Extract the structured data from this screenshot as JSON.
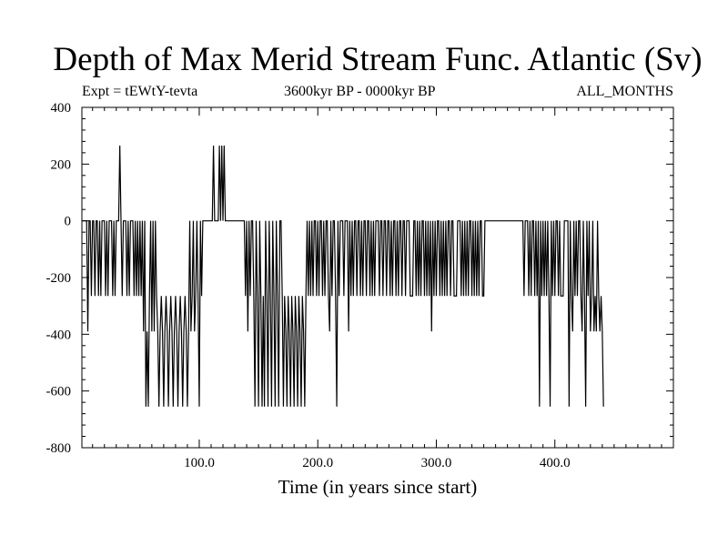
{
  "chart_data": {
    "type": "line",
    "title": "Depth of Max Merid Stream Func. Atlantic (Sv)",
    "annotations": {
      "left": "Expt = tEWtY-tevta",
      "center": "3600kyr BP - 0000kyr BP",
      "right": "ALL_MONTHS"
    },
    "xlabel": "Time (in years since start)",
    "ylabel": "",
    "xlim": [
      1,
      500
    ],
    "ylim": [
      -800,
      400
    ],
    "x_ticks": [
      100,
      200,
      300,
      400
    ],
    "x_tick_labels": [
      "100.0",
      "200.0",
      "300.0",
      "400.0"
    ],
    "y_ticks": [
      400,
      200,
      0,
      -200,
      -400,
      -600,
      -800
    ],
    "y_tick_labels": [
      "400",
      "200",
      "0",
      "-200",
      "-400",
      "-600",
      "-800"
    ],
    "grid": false,
    "series": [
      {
        "x_start": 1,
        "x_step": 1,
        "values": [
          0,
          0,
          0,
          0,
          0,
          -390,
          0,
          0,
          -265,
          0,
          0,
          -265,
          0,
          0,
          -265,
          0,
          -265,
          0,
          0,
          0,
          -265,
          0,
          -265,
          0,
          0,
          0,
          -265,
          0,
          -265,
          0,
          0,
          0,
          265,
          0,
          -265,
          0,
          0,
          0,
          -265,
          0,
          -265,
          0,
          0,
          0,
          -265,
          0,
          -265,
          0,
          -265,
          0,
          -265,
          0,
          -390,
          0,
          -655,
          -390,
          -655,
          -265,
          0,
          -390,
          0,
          -390,
          0,
          -265,
          -390,
          -655,
          -390,
          -265,
          -390,
          -655,
          -390,
          -265,
          -390,
          -655,
          -390,
          -265,
          -390,
          -655,
          -390,
          -265,
          -390,
          -655,
          -390,
          -265,
          -390,
          -655,
          -390,
          -265,
          -390,
          -655,
          -390,
          0,
          -390,
          -265,
          0,
          -390,
          -265,
          0,
          -265,
          -655,
          0,
          -265,
          0,
          0,
          0,
          0,
          0,
          0,
          0,
          0,
          0,
          265,
          0,
          0,
          0,
          0,
          265,
          0,
          265,
          0,
          265,
          0,
          0,
          0,
          0,
          0,
          0,
          0,
          0,
          0,
          0,
          0,
          0,
          0,
          0,
          0,
          0,
          0,
          -265,
          0,
          -390,
          0,
          -265,
          0,
          0,
          -265,
          -655,
          0,
          -265,
          -655,
          0,
          -265,
          -655,
          -265,
          -655,
          0,
          -265,
          -655,
          0,
          -265,
          -655,
          0,
          -265,
          -655,
          0,
          -265,
          -655,
          0,
          0,
          -265,
          -655,
          -265,
          -390,
          -655,
          -265,
          -390,
          -655,
          -265,
          -390,
          -655,
          -265,
          -390,
          -655,
          -265,
          -390,
          -655,
          -265,
          -390,
          -655,
          -265,
          0,
          -265,
          0,
          -265,
          0,
          -265,
          0,
          0,
          -265,
          0,
          -265,
          0,
          0,
          -265,
          0,
          -265,
          0,
          0,
          -265,
          -390,
          0,
          -265,
          0,
          0,
          -265,
          -655,
          0,
          -265,
          0,
          0,
          0,
          -265,
          0,
          0,
          0,
          -390,
          0,
          -265,
          0,
          -265,
          0,
          0,
          -265,
          0,
          0,
          -265,
          0,
          -265,
          0,
          0,
          -265,
          0,
          0,
          -265,
          0,
          -265,
          0,
          -265,
          0,
          0,
          0,
          -265,
          0,
          0,
          -265,
          0,
          0,
          -265,
          0,
          0,
          -265,
          0,
          -265,
          0,
          0,
          -265,
          0,
          -265,
          0,
          0,
          -265,
          0,
          0,
          -265,
          0,
          0,
          0,
          -265,
          -265,
          -265,
          0,
          0,
          -265,
          0,
          -265,
          0,
          -265,
          0,
          0,
          -265,
          0,
          -265,
          0,
          -265,
          0,
          -390,
          0,
          -265,
          0,
          -265,
          0,
          0,
          -265,
          0,
          -265,
          0,
          -265,
          0,
          -265,
          0,
          0,
          -265,
          0,
          0,
          -265,
          -265,
          -265,
          0,
          0,
          0,
          -265,
          0,
          -265,
          0,
          -265,
          0,
          -265,
          0,
          0,
          -265,
          0,
          -265,
          0,
          -265,
          0,
          -265,
          0,
          0,
          -265,
          -265,
          0,
          0,
          0,
          0,
          0,
          0,
          0,
          0,
          0,
          0,
          0,
          0,
          0,
          0,
          0,
          0,
          0,
          0,
          0,
          0,
          0,
          0,
          0,
          0,
          0,
          0,
          0,
          0,
          0,
          0,
          0,
          0,
          0,
          -265,
          0,
          0,
          0,
          -265,
          0,
          -265,
          0,
          0,
          -265,
          0,
          -265,
          0,
          -655,
          0,
          -265,
          0,
          -265,
          0,
          -265,
          0,
          -265,
          -655,
          0,
          -265,
          0,
          -265,
          0,
          0,
          -265,
          0,
          -265,
          -265,
          -265,
          0,
          0,
          0,
          0,
          -655,
          0,
          -265,
          -390,
          0,
          -265,
          0,
          -265,
          0,
          0,
          -265,
          -390,
          0,
          -265,
          -655,
          0,
          -265,
          0,
          -390,
          -265,
          0,
          -390,
          -265,
          -390,
          0,
          -265,
          -390,
          -265,
          -390,
          -655
        ]
      }
    ]
  }
}
